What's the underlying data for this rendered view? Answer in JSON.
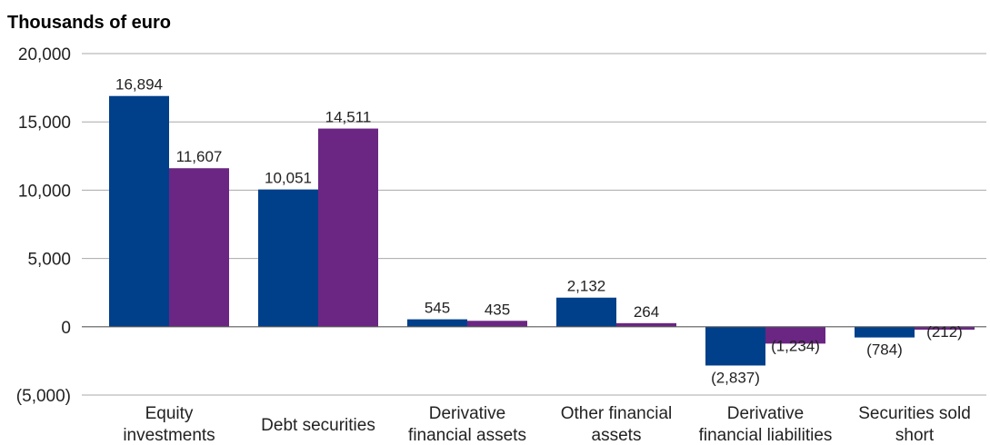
{
  "chart_data": {
    "type": "bar",
    "title": "Thousands of euro",
    "xlabel": "",
    "ylabel": "",
    "ylim": [
      -5000,
      20000
    ],
    "yticks": [
      20000,
      15000,
      10000,
      5000,
      0,
      -5000
    ],
    "ytick_labels": [
      "20,000",
      "15,000",
      "10,000",
      "5,000",
      "0",
      "(5,000)"
    ],
    "grid": true,
    "legend": "none",
    "categories": [
      [
        "Equity",
        "investments"
      ],
      [
        "Debt securities"
      ],
      [
        "Derivative",
        "financial assets"
      ],
      [
        "Other financial",
        "assets"
      ],
      [
        "Derivative",
        "financial liabilities"
      ],
      [
        "Securities sold",
        "short"
      ]
    ],
    "series": [
      {
        "color": "#003f8a",
        "values": [
          16894,
          10051,
          545,
          2132,
          -2837,
          -784
        ],
        "labels": [
          "16,894",
          "10,051",
          "545",
          "2,132",
          "(2,837)",
          "(784)"
        ]
      },
      {
        "color": "#6b2683",
        "values": [
          11607,
          14511,
          435,
          264,
          -1234,
          -212
        ],
        "labels": [
          "11,607",
          "14,511",
          "435",
          "264",
          "(1,234)",
          "(212)"
        ]
      }
    ]
  }
}
